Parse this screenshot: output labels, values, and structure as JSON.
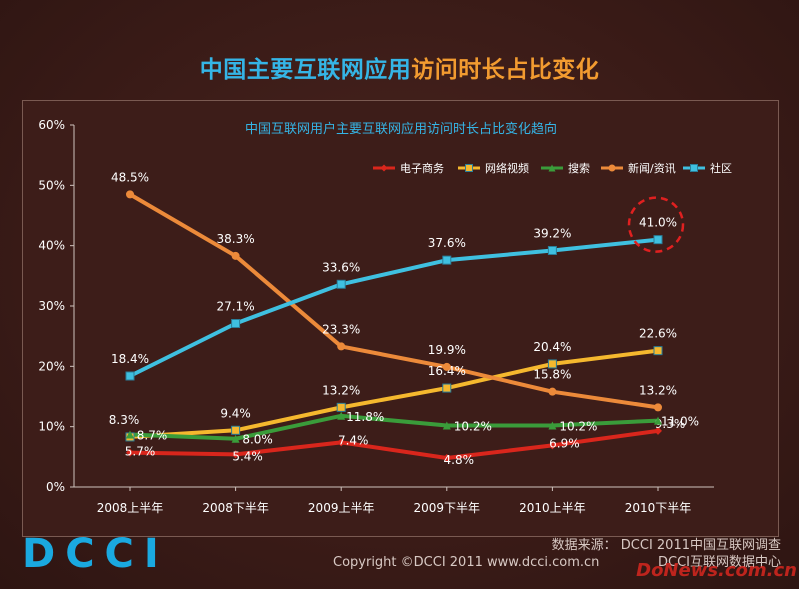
{
  "title": {
    "part1": "中国主要互联网应用",
    "part2": "访问时长占比变化"
  },
  "chart_data": {
    "type": "line",
    "title": "中国互联网用户主要互联网应用访问时长占比变化趋向",
    "categories": [
      "2008上半年",
      "2008下半年",
      "2009上半年",
      "2009下半年",
      "2010上半年",
      "2010下半年"
    ],
    "ylim": [
      0,
      60
    ],
    "yticks": [
      0,
      10,
      20,
      30,
      40,
      50,
      60
    ],
    "ytick_labels": [
      "0%",
      "10%",
      "20%",
      "30%",
      "40%",
      "50%",
      "60%"
    ],
    "grid": false,
    "legend_position": "top-right",
    "series": [
      {
        "name": "电子商务",
        "color": "#d9261c",
        "marker": "diamond",
        "values": [
          5.7,
          5.4,
          7.4,
          4.8,
          6.9,
          9.3
        ],
        "labels": [
          "5.7%",
          "5.4%",
          "7.4%",
          "4.8%",
          "6.9%",
          "9.3%"
        ]
      },
      {
        "name": "网络视频",
        "color": "#f5b82e",
        "marker": "square",
        "values": [
          8.3,
          9.4,
          13.2,
          16.4,
          20.4,
          22.6
        ],
        "labels": [
          "8.3%",
          "9.4%",
          "13.2%",
          "16.4%",
          "20.4%",
          "22.6%"
        ]
      },
      {
        "name": "搜索",
        "color": "#3a9c3a",
        "marker": "triangle",
        "values": [
          8.7,
          8.0,
          11.8,
          10.2,
          10.2,
          11.0
        ],
        "labels": [
          "8.7%",
          "8.0%",
          "11.8%",
          "10.2%",
          "10.2%",
          "11.0%"
        ]
      },
      {
        "name": "新闻/资讯",
        "color": "#ec8a3a",
        "marker": "circle",
        "values": [
          48.5,
          38.3,
          23.3,
          19.9,
          15.8,
          13.2
        ],
        "labels": [
          "48.5%",
          "38.3%",
          "23.3%",
          "19.9%",
          "15.8%",
          "13.2%"
        ]
      },
      {
        "name": "社区",
        "color": "#3fc0e0",
        "marker": "square",
        "values": [
          18.4,
          27.1,
          33.6,
          37.6,
          39.2,
          41.0
        ],
        "labels": [
          "18.4%",
          "27.1%",
          "33.6%",
          "37.6%",
          "39.2%",
          "41.0%"
        ]
      }
    ],
    "highlight": {
      "series": 4,
      "point": 5
    }
  },
  "footer": {
    "logo": "DCCI",
    "source_line1": "数据来源： DCCI 2011中国互联网调查",
    "source_line2": "DCCI互联网数据中心",
    "copyright": "Copyright ©DCCI 2011 www.dcci.com.cn",
    "watermark": "DoNews.com.cn"
  },
  "colors": {
    "background": "#3b1d18",
    "axis": "#cfc2bd",
    "text": "#ffffff",
    "highlight_circle": "#e02020"
  }
}
